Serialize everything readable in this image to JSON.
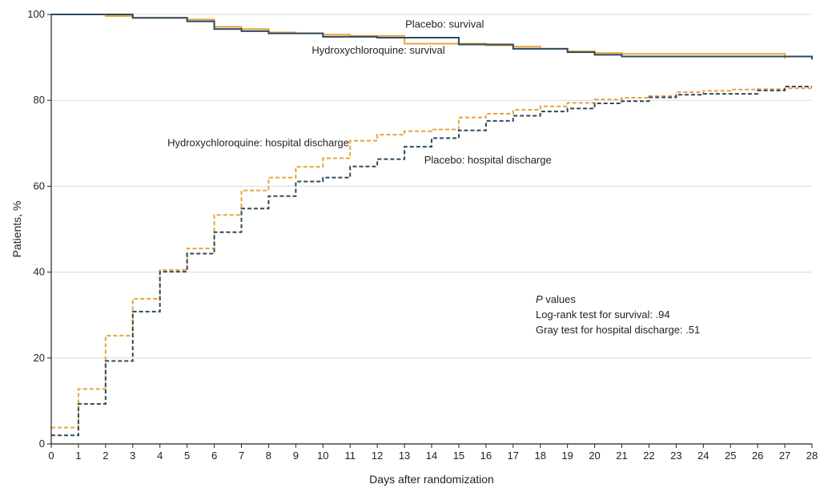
{
  "chart_data": {
    "type": "line",
    "xlabel": "Days after randomization",
    "ylabel": "Patients, %",
    "xlim": [
      0,
      28
    ],
    "ylim": [
      0,
      100
    ],
    "xticks": [
      "0",
      "1",
      "2",
      "3",
      "4",
      "5",
      "6",
      "7",
      "8",
      "9",
      "10",
      "11",
      "12",
      "13",
      "14",
      "15",
      "16",
      "17",
      "18",
      "19",
      "20",
      "21",
      "22",
      "23",
      "24",
      "25",
      "26",
      "27",
      "28"
    ],
    "yticks": [
      "0",
      "20",
      "40",
      "60",
      "80",
      "100"
    ],
    "grid": "horizontal",
    "colors": {
      "hydroxychloroquine": "#E8A33D",
      "placebo": "#2E4A5E",
      "grid": "#d9d9d9",
      "axis": "#222222"
    },
    "series": [
      {
        "name": "Placebo: survival",
        "style": "solid",
        "color": "#2E4A5E",
        "x": [
          0,
          3,
          5,
          6,
          7,
          8,
          10,
          12,
          15,
          17,
          19,
          20,
          21,
          27.9,
          28
        ],
        "y": [
          100,
          99.2,
          98.4,
          96.6,
          96.1,
          95.6,
          94.8,
          94.6,
          93.0,
          92.0,
          91.2,
          90.6,
          90.2,
          90.2,
          89.5
        ]
      },
      {
        "name": "Hydroxychloroquine: survival",
        "style": "solid",
        "color": "#E8A33D",
        "x": [
          0,
          2,
          3,
          5,
          6,
          7,
          8,
          9,
          10,
          11,
          13,
          16,
          17,
          18,
          19,
          20,
          21,
          27
        ],
        "y": [
          100,
          99.6,
          99.2,
          98.8,
          97.1,
          96.6,
          95.8,
          95.6,
          95.3,
          95.0,
          93.2,
          92.8,
          92.5,
          92.0,
          91.4,
          91.0,
          90.8,
          89.7
        ]
      },
      {
        "name": "Hydroxychloroquine: hospital discharge",
        "style": "dashed",
        "color": "#E8A33D",
        "x": [
          0,
          1,
          2,
          3,
          4,
          5,
          6,
          7,
          8,
          9,
          10,
          11,
          12,
          13,
          14,
          15,
          16,
          17,
          18,
          19,
          20,
          21,
          22,
          23,
          24,
          25,
          26,
          27,
          28
        ],
        "y": [
          3.8,
          12.8,
          25.2,
          33.8,
          40.5,
          45.5,
          53.3,
          59.0,
          62.0,
          64.5,
          66.5,
          70.6,
          72.0,
          72.8,
          73.2,
          76.0,
          76.9,
          77.8,
          78.6,
          79.4,
          80.2,
          80.6,
          81.0,
          81.9,
          82.2,
          82.5,
          82.6,
          82.8,
          82.8
        ]
      },
      {
        "name": "Placebo: hospital discharge",
        "style": "dashed",
        "color": "#2E4A5E",
        "x": [
          0,
          1,
          2,
          3,
          4,
          5,
          6,
          7,
          8,
          9,
          10,
          11,
          12,
          13,
          14,
          15,
          16,
          17,
          18,
          19,
          20,
          21,
          22,
          23,
          24,
          25,
          26,
          27,
          28
        ],
        "y": [
          2.0,
          9.3,
          19.3,
          30.8,
          40.1,
          44.3,
          49.3,
          54.8,
          57.7,
          61.1,
          62.0,
          64.6,
          66.3,
          69.2,
          71.2,
          73.0,
          75.2,
          76.4,
          77.4,
          78.1,
          79.3,
          79.8,
          80.7,
          81.3,
          81.5,
          81.5,
          82.3,
          83.2,
          83.2
        ]
      }
    ],
    "annotations": {
      "pvalues_title_italic": "P",
      "pvalues_title_rest": " values",
      "logrank": "Log-rank test for survival: .94",
      "gray": "Gray test for hospital discharge: .51"
    }
  }
}
